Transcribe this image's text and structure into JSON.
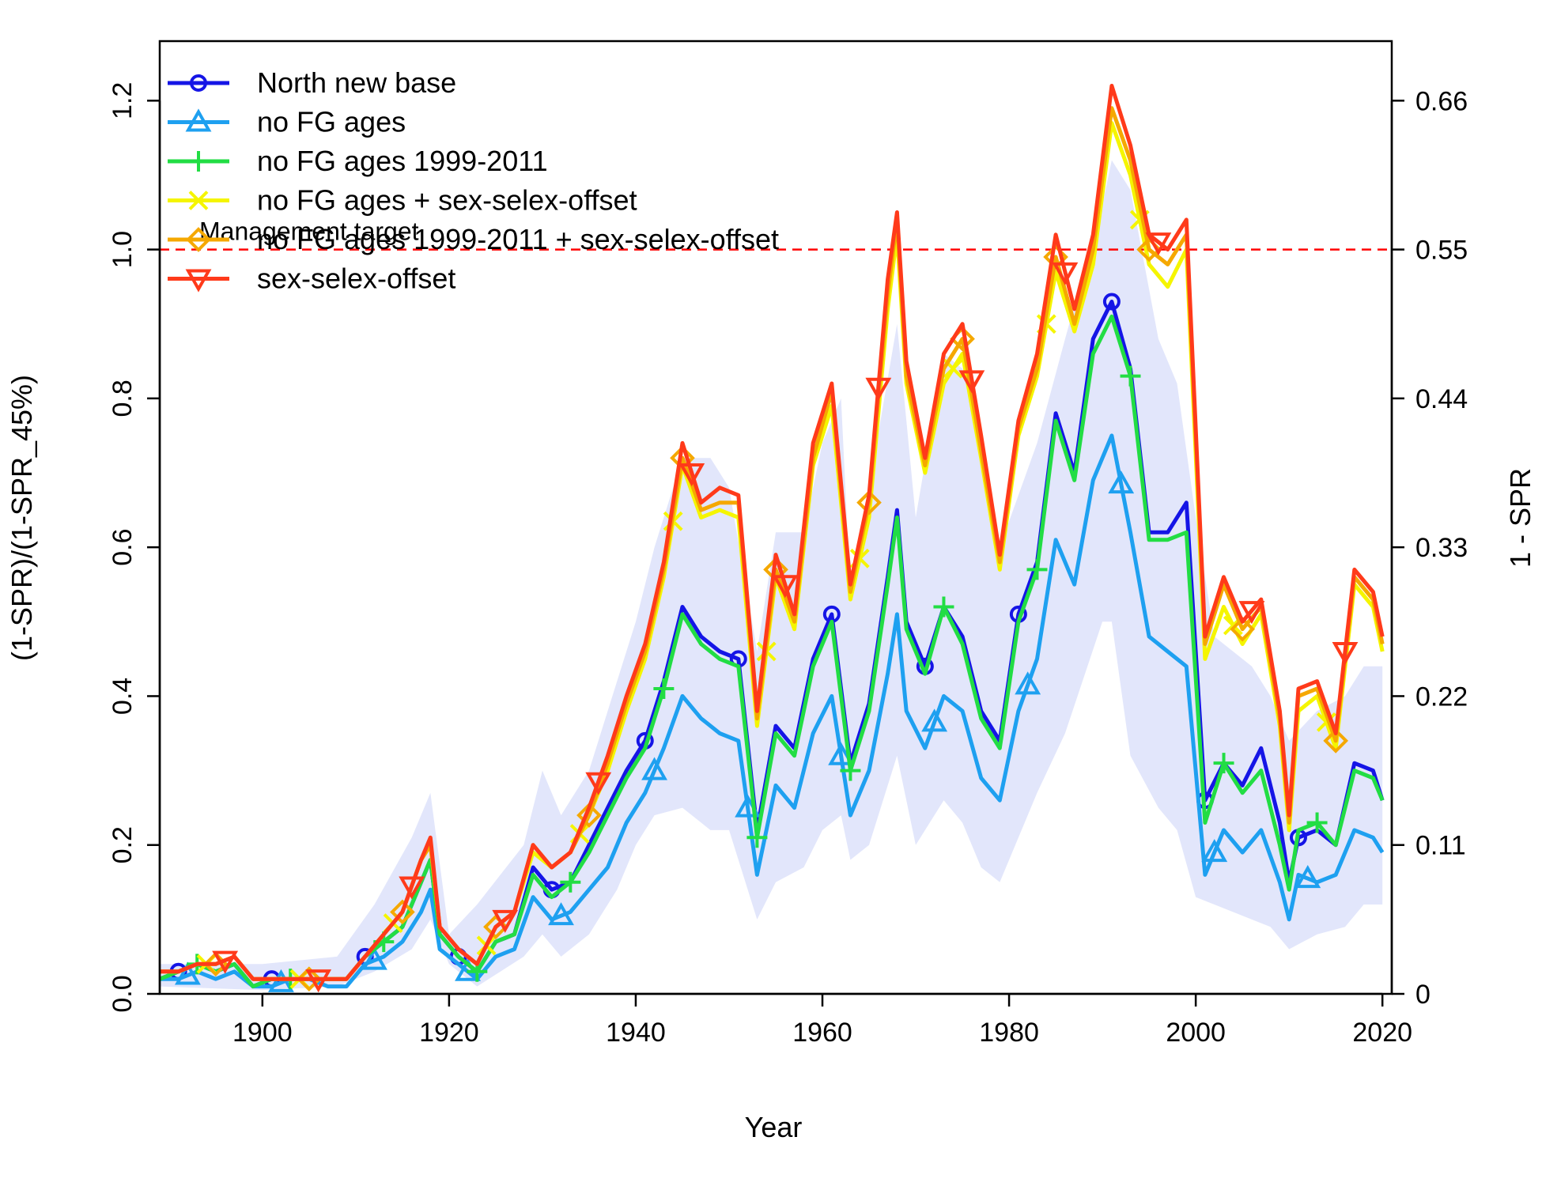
{
  "chart_data": {
    "type": "line",
    "xlabel": "Year",
    "ylabel": "(1-SPR)/(1-SPR_45%)",
    "y2label": "1 - SPR",
    "xlim": [
      1889,
      2021
    ],
    "ylim": [
      0,
      1.28
    ],
    "y2lim": [
      0,
      0.704
    ],
    "xticks": [
      "1900",
      "1920",
      "1940",
      "1960",
      "1980",
      "2000",
      "2020"
    ],
    "yticks": [
      "0.0",
      "0.2",
      "0.4",
      "0.6",
      "0.8",
      "1.0",
      "1.2"
    ],
    "y2ticks": [
      "0",
      "0.11",
      "0.22",
      "0.33",
      "0.44",
      "0.55",
      "0.66"
    ],
    "reference_line": {
      "y": 1.0,
      "label": "Management target",
      "color": "#ff0000"
    },
    "legend_position": "top-left",
    "uncertainty_band": {
      "color": "#e2e6fb",
      "x": [
        1889,
        1900,
        1908,
        1912,
        1916,
        1918,
        1920,
        1923,
        1928,
        1930,
        1932,
        1935,
        1938,
        1940,
        1942,
        1945,
        1948,
        1950,
        1953,
        1955,
        1958,
        1960,
        1962,
        1963,
        1965,
        1968,
        1970,
        1973,
        1975,
        1977,
        1979,
        1983,
        1986,
        1990,
        1991,
        1993,
        1996,
        1998,
        2000,
        2002,
        2006,
        2008,
        2010,
        2013,
        2016,
        2018,
        2020
      ],
      "lower": [
        0.01,
        0.005,
        0.01,
        0.03,
        0.06,
        0.1,
        0.04,
        0.01,
        0.05,
        0.08,
        0.05,
        0.08,
        0.14,
        0.2,
        0.24,
        0.25,
        0.22,
        0.22,
        0.1,
        0.15,
        0.17,
        0.22,
        0.24,
        0.18,
        0.2,
        0.32,
        0.2,
        0.26,
        0.23,
        0.17,
        0.15,
        0.27,
        0.35,
        0.5,
        0.5,
        0.32,
        0.25,
        0.22,
        0.13,
        0.12,
        0.1,
        0.09,
        0.06,
        0.08,
        0.09,
        0.12,
        0.12
      ],
      "upper": [
        0.04,
        0.04,
        0.05,
        0.12,
        0.21,
        0.27,
        0.08,
        0.12,
        0.2,
        0.3,
        0.24,
        0.3,
        0.42,
        0.5,
        0.6,
        0.72,
        0.72,
        0.68,
        0.46,
        0.62,
        0.62,
        0.74,
        0.8,
        0.54,
        0.68,
        0.9,
        0.64,
        0.86,
        0.84,
        0.76,
        0.6,
        0.74,
        0.88,
        1.06,
        1.12,
        1.08,
        0.88,
        0.82,
        0.64,
        0.48,
        0.44,
        0.4,
        0.34,
        0.38,
        0.4,
        0.44,
        0.44
      ]
    },
    "series": [
      {
        "name": "North new base",
        "color": "#1515e6",
        "marker": "circle",
        "markers_at": [
          1891,
          1901,
          1911,
          1921,
          1931,
          1941,
          1951,
          1961,
          1971,
          1981,
          1991,
          2001,
          2011
        ],
        "x": [
          1889,
          1891,
          1893,
          1895,
          1897,
          1899,
          1901,
          1903,
          1905,
          1907,
          1909,
          1911,
          1913,
          1915,
          1917,
          1918,
          1919,
          1921,
          1923,
          1925,
          1927,
          1929,
          1931,
          1933,
          1935,
          1937,
          1939,
          1941,
          1943,
          1945,
          1947,
          1949,
          1951,
          1953,
          1955,
          1957,
          1959,
          1961,
          1963,
          1965,
          1967,
          1968,
          1969,
          1971,
          1973,
          1975,
          1977,
          1979,
          1981,
          1983,
          1985,
          1987,
          1989,
          1991,
          1993,
          1995,
          1997,
          1999,
          2001,
          2003,
          2005,
          2007,
          2009,
          2010,
          2011,
          2013,
          2015,
          2017,
          2019,
          2020
        ],
        "y": [
          0.02,
          0.03,
          0.04,
          0.03,
          0.04,
          0.01,
          0.02,
          0.02,
          0.02,
          0.02,
          0.02,
          0.05,
          0.07,
          0.09,
          0.15,
          0.18,
          0.08,
          0.05,
          0.03,
          0.07,
          0.08,
          0.17,
          0.14,
          0.15,
          0.2,
          0.25,
          0.3,
          0.34,
          0.42,
          0.52,
          0.48,
          0.46,
          0.45,
          0.22,
          0.36,
          0.33,
          0.45,
          0.51,
          0.31,
          0.39,
          0.56,
          0.65,
          0.5,
          0.44,
          0.52,
          0.48,
          0.38,
          0.34,
          0.51,
          0.58,
          0.78,
          0.7,
          0.88,
          0.93,
          0.84,
          0.62,
          0.62,
          0.66,
          0.26,
          0.31,
          0.28,
          0.33,
          0.23,
          0.15,
          0.21,
          0.22,
          0.2,
          0.31,
          0.3,
          0.26
        ]
      },
      {
        "name": "no FG ages",
        "color": "#1ea0f0",
        "marker": "triangle-up",
        "markers_at": [
          1892,
          1902,
          1912,
          1922,
          1932,
          1942,
          1952,
          1962,
          1972,
          1982,
          1992,
          2002,
          2012
        ],
        "x": [
          1889,
          1891,
          1893,
          1895,
          1897,
          1899,
          1901,
          1903,
          1905,
          1907,
          1909,
          1911,
          1913,
          1915,
          1917,
          1918,
          1919,
          1921,
          1923,
          1925,
          1927,
          1929,
          1931,
          1933,
          1935,
          1937,
          1939,
          1941,
          1943,
          1945,
          1947,
          1949,
          1951,
          1953,
          1955,
          1957,
          1959,
          1961,
          1963,
          1965,
          1967,
          1968,
          1969,
          1971,
          1973,
          1975,
          1977,
          1979,
          1981,
          1983,
          1985,
          1987,
          1989,
          1991,
          1993,
          1995,
          1997,
          1999,
          2001,
          2003,
          2005,
          2007,
          2009,
          2010,
          2011,
          2013,
          2015,
          2017,
          2019,
          2020
        ],
        "y": [
          0.02,
          0.02,
          0.03,
          0.02,
          0.03,
          0.01,
          0.01,
          0.02,
          0.02,
          0.01,
          0.01,
          0.04,
          0.05,
          0.07,
          0.11,
          0.14,
          0.06,
          0.04,
          0.02,
          0.05,
          0.06,
          0.13,
          0.1,
          0.11,
          0.14,
          0.17,
          0.23,
          0.27,
          0.33,
          0.4,
          0.37,
          0.35,
          0.34,
          0.16,
          0.28,
          0.25,
          0.35,
          0.4,
          0.24,
          0.3,
          0.43,
          0.51,
          0.38,
          0.33,
          0.4,
          0.38,
          0.29,
          0.26,
          0.38,
          0.45,
          0.61,
          0.55,
          0.69,
          0.75,
          0.62,
          0.48,
          0.46,
          0.44,
          0.16,
          0.22,
          0.19,
          0.22,
          0.15,
          0.1,
          0.16,
          0.15,
          0.16,
          0.22,
          0.21,
          0.19
        ]
      },
      {
        "name": "no FG ages 1999-2011",
        "color": "#22dd44",
        "marker": "plus",
        "markers_at": [
          1893,
          1903,
          1913,
          1923,
          1933,
          1943,
          1953,
          1963,
          1973,
          1983,
          1993,
          2003,
          2013
        ],
        "x": [
          1889,
          1891,
          1893,
          1895,
          1897,
          1899,
          1901,
          1903,
          1905,
          1907,
          1909,
          1911,
          1913,
          1915,
          1917,
          1918,
          1919,
          1921,
          1923,
          1925,
          1927,
          1929,
          1931,
          1933,
          1935,
          1937,
          1939,
          1941,
          1943,
          1945,
          1947,
          1949,
          1951,
          1953,
          1955,
          1957,
          1959,
          1961,
          1963,
          1965,
          1967,
          1968,
          1969,
          1971,
          1973,
          1975,
          1977,
          1979,
          1981,
          1983,
          1985,
          1987,
          1989,
          1991,
          1993,
          1995,
          1997,
          1999,
          2001,
          2003,
          2005,
          2007,
          2009,
          2010,
          2011,
          2013,
          2015,
          2017,
          2019,
          2020
        ],
        "y": [
          0.02,
          0.03,
          0.04,
          0.03,
          0.04,
          0.01,
          0.02,
          0.02,
          0.02,
          0.02,
          0.02,
          0.05,
          0.07,
          0.09,
          0.15,
          0.18,
          0.08,
          0.05,
          0.03,
          0.07,
          0.08,
          0.16,
          0.13,
          0.15,
          0.19,
          0.24,
          0.29,
          0.33,
          0.41,
          0.51,
          0.47,
          0.45,
          0.44,
          0.21,
          0.35,
          0.32,
          0.44,
          0.5,
          0.3,
          0.38,
          0.55,
          0.64,
          0.49,
          0.43,
          0.52,
          0.47,
          0.37,
          0.33,
          0.5,
          0.57,
          0.77,
          0.69,
          0.86,
          0.91,
          0.83,
          0.61,
          0.61,
          0.62,
          0.23,
          0.31,
          0.27,
          0.3,
          0.2,
          0.14,
          0.22,
          0.23,
          0.2,
          0.3,
          0.29,
          0.26
        ]
      },
      {
        "name": "no FG ages + sex-selex-offset",
        "color": "#f5f500",
        "marker": "x",
        "markers_at": [
          1894,
          1904,
          1914,
          1924,
          1934,
          1944,
          1954,
          1964,
          1974,
          1984,
          1994,
          2004,
          2014
        ],
        "x": [
          1889,
          1891,
          1893,
          1895,
          1897,
          1899,
          1901,
          1903,
          1905,
          1907,
          1909,
          1911,
          1913,
          1915,
          1917,
          1918,
          1919,
          1921,
          1923,
          1925,
          1927,
          1929,
          1931,
          1933,
          1935,
          1937,
          1939,
          1941,
          1943,
          1945,
          1947,
          1949,
          1951,
          1953,
          1955,
          1957,
          1959,
          1961,
          1963,
          1965,
          1967,
          1968,
          1969,
          1971,
          1973,
          1975,
          1977,
          1979,
          1981,
          1983,
          1985,
          1987,
          1989,
          1991,
          1993,
          1995,
          1997,
          1999,
          2001,
          2003,
          2005,
          2007,
          2009,
          2010,
          2011,
          2013,
          2015,
          2017,
          2019,
          2020
        ],
        "y": [
          0.03,
          0.03,
          0.04,
          0.04,
          0.05,
          0.02,
          0.02,
          0.02,
          0.02,
          0.02,
          0.02,
          0.05,
          0.08,
          0.11,
          0.18,
          0.2,
          0.09,
          0.06,
          0.04,
          0.09,
          0.11,
          0.19,
          0.17,
          0.19,
          0.24,
          0.3,
          0.38,
          0.45,
          0.56,
          0.71,
          0.64,
          0.65,
          0.64,
          0.36,
          0.56,
          0.49,
          0.71,
          0.79,
          0.53,
          0.64,
          0.92,
          1.02,
          0.82,
          0.7,
          0.82,
          0.86,
          0.72,
          0.57,
          0.75,
          0.83,
          0.97,
          0.89,
          0.98,
          1.17,
          1.1,
          0.98,
          0.95,
          1.0,
          0.45,
          0.52,
          0.47,
          0.51,
          0.36,
          0.22,
          0.38,
          0.4,
          0.33,
          0.55,
          0.52,
          0.46
        ]
      },
      {
        "name": "no FG ages 1999-2011 + sex-selex-offset",
        "color": "#f5a800",
        "marker": "diamond",
        "markers_at": [
          1895,
          1905,
          1915,
          1925,
          1935,
          1945,
          1955,
          1965,
          1975,
          1985,
          1995,
          2005,
          2015
        ],
        "x": [
          1889,
          1891,
          1893,
          1895,
          1897,
          1899,
          1901,
          1903,
          1905,
          1907,
          1909,
          1911,
          1913,
          1915,
          1917,
          1918,
          1919,
          1921,
          1923,
          1925,
          1927,
          1929,
          1931,
          1933,
          1935,
          1937,
          1939,
          1941,
          1943,
          1945,
          1947,
          1949,
          1951,
          1953,
          1955,
          1957,
          1959,
          1961,
          1963,
          1965,
          1967,
          1968,
          1969,
          1971,
          1973,
          1975,
          1977,
          1979,
          1981,
          1983,
          1985,
          1987,
          1989,
          1991,
          1993,
          1995,
          1997,
          1999,
          2001,
          2003,
          2005,
          2007,
          2009,
          2010,
          2011,
          2013,
          2015,
          2017,
          2019,
          2020
        ],
        "y": [
          0.03,
          0.03,
          0.04,
          0.04,
          0.05,
          0.02,
          0.02,
          0.02,
          0.02,
          0.02,
          0.02,
          0.05,
          0.08,
          0.11,
          0.18,
          0.2,
          0.09,
          0.06,
          0.04,
          0.09,
          0.11,
          0.2,
          0.17,
          0.19,
          0.24,
          0.31,
          0.39,
          0.46,
          0.57,
          0.72,
          0.65,
          0.66,
          0.66,
          0.37,
          0.57,
          0.5,
          0.72,
          0.81,
          0.54,
          0.66,
          0.94,
          1.04,
          0.83,
          0.71,
          0.84,
          0.88,
          0.73,
          0.58,
          0.76,
          0.84,
          0.99,
          0.9,
          1.0,
          1.19,
          1.12,
          1.0,
          0.98,
          1.02,
          0.47,
          0.55,
          0.49,
          0.52,
          0.37,
          0.23,
          0.4,
          0.41,
          0.34,
          0.56,
          0.53,
          0.47
        ]
      },
      {
        "name": "sex-selex-offset",
        "color": "#ff3a1a",
        "marker": "triangle-down",
        "markers_at": [
          1896,
          1906,
          1916,
          1926,
          1936,
          1946,
          1956,
          1966,
          1976,
          1986,
          1996,
          2006,
          2016
        ],
        "x": [
          1889,
          1891,
          1893,
          1895,
          1897,
          1899,
          1901,
          1903,
          1905,
          1907,
          1909,
          1911,
          1913,
          1915,
          1917,
          1918,
          1919,
          1921,
          1923,
          1925,
          1927,
          1929,
          1931,
          1933,
          1935,
          1937,
          1939,
          1941,
          1943,
          1945,
          1947,
          1949,
          1951,
          1953,
          1955,
          1957,
          1959,
          1961,
          1963,
          1965,
          1967,
          1968,
          1969,
          1971,
          1973,
          1975,
          1977,
          1979,
          1981,
          1983,
          1985,
          1987,
          1989,
          1991,
          1993,
          1995,
          1997,
          1999,
          2001,
          2003,
          2005,
          2007,
          2009,
          2010,
          2011,
          2013,
          2015,
          2017,
          2019,
          2020
        ],
        "y": [
          0.03,
          0.03,
          0.04,
          0.04,
          0.05,
          0.02,
          0.02,
          0.02,
          0.02,
          0.02,
          0.02,
          0.05,
          0.08,
          0.11,
          0.18,
          0.21,
          0.09,
          0.06,
          0.04,
          0.09,
          0.11,
          0.2,
          0.17,
          0.19,
          0.25,
          0.32,
          0.4,
          0.47,
          0.58,
          0.74,
          0.66,
          0.68,
          0.67,
          0.38,
          0.59,
          0.51,
          0.74,
          0.82,
          0.55,
          0.67,
          0.96,
          1.05,
          0.85,
          0.72,
          0.86,
          0.9,
          0.75,
          0.59,
          0.77,
          0.86,
          1.02,
          0.92,
          1.02,
          1.22,
          1.14,
          1.02,
          1.0,
          1.04,
          0.48,
          0.56,
          0.5,
          0.53,
          0.38,
          0.24,
          0.41,
          0.42,
          0.35,
          0.57,
          0.54,
          0.48
        ]
      }
    ]
  }
}
